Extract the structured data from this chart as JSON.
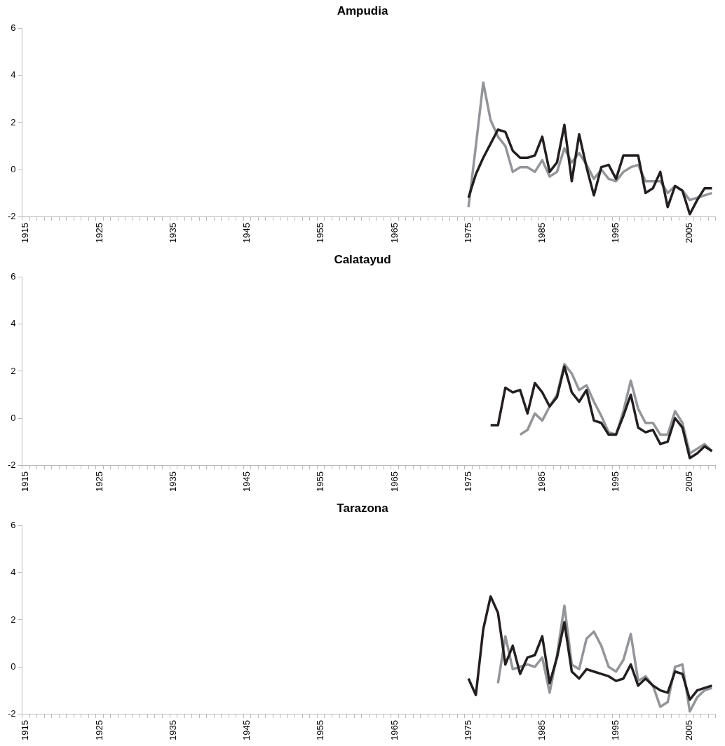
{
  "chart_data": [
    {
      "type": "line",
      "title": "Ampudia",
      "marker": "none",
      "grid": false,
      "ylim": [
        -2,
        6
      ],
      "yticks": [
        -2,
        0,
        2,
        4,
        6
      ],
      "categories": [
        "1915",
        null,
        null,
        null,
        null,
        null,
        null,
        null,
        null,
        null,
        "1925",
        null,
        null,
        null,
        null,
        null,
        null,
        null,
        null,
        null,
        "1935",
        null,
        null,
        null,
        null,
        null,
        null,
        null,
        null,
        null,
        "1945",
        null,
        null,
        null,
        null,
        null,
        null,
        null,
        null,
        null,
        "1955",
        null,
        null,
        null,
        null,
        null,
        null,
        null,
        null,
        null,
        "1965",
        null,
        null,
        null,
        null,
        null,
        null,
        null,
        null,
        null,
        "1975",
        null,
        null,
        null,
        null,
        null,
        null,
        null,
        null,
        null,
        "1985",
        null,
        null,
        null,
        null,
        null,
        null,
        null,
        null,
        null,
        "1995",
        null,
        null,
        null,
        null,
        null,
        null,
        null,
        null,
        null,
        "2005",
        null,
        null,
        null
      ],
      "series": [
        {
          "color": "#231f20",
          "values": [
            null,
            null,
            null,
            null,
            null,
            null,
            null,
            null,
            null,
            null,
            null,
            null,
            null,
            null,
            null,
            null,
            null,
            null,
            null,
            null,
            null,
            null,
            null,
            null,
            null,
            null,
            null,
            null,
            null,
            null,
            null,
            null,
            null,
            null,
            null,
            null,
            null,
            null,
            null,
            null,
            null,
            null,
            null,
            null,
            null,
            null,
            null,
            null,
            null,
            null,
            null,
            null,
            null,
            null,
            null,
            null,
            null,
            null,
            null,
            null,
            -1.2,
            -0.2,
            0.5,
            1.1,
            1.7,
            1.6,
            0.8,
            0.5,
            0.5,
            0.6,
            1.4,
            -0.1,
            0.3,
            1.9,
            -0.5,
            1.5,
            0.1,
            -1.1,
            0.1,
            0.2,
            -0.4,
            0.6,
            0.6,
            0.6,
            -1.0,
            -0.8,
            -0.1,
            -1.6,
            -0.7,
            -0.9,
            -1.9,
            -1.3,
            -0.8,
            -0.8
          ]
        },
        {
          "color": "#939598",
          "values": [
            null,
            null,
            null,
            null,
            null,
            null,
            null,
            null,
            null,
            null,
            null,
            null,
            null,
            null,
            null,
            null,
            null,
            null,
            null,
            null,
            null,
            null,
            null,
            null,
            null,
            null,
            null,
            null,
            null,
            null,
            null,
            null,
            null,
            null,
            null,
            null,
            null,
            null,
            null,
            null,
            null,
            null,
            null,
            null,
            null,
            null,
            null,
            null,
            null,
            null,
            null,
            null,
            null,
            null,
            null,
            null,
            null,
            null,
            null,
            null,
            -1.6,
            1.0,
            3.7,
            2.1,
            1.4,
            1.0,
            -0.1,
            0.1,
            0.1,
            -0.1,
            0.4,
            -0.3,
            -0.1,
            0.9,
            0.3,
            0.7,
            0.2,
            -0.4,
            0.0,
            -0.4,
            -0.5,
            -0.1,
            0.1,
            0.2,
            -0.5,
            -0.5,
            -0.5,
            -1.0,
            -0.7,
            -0.9,
            -1.3,
            -1.2,
            -1.1,
            -1.0
          ]
        }
      ]
    },
    {
      "type": "line",
      "title": "Calatayud",
      "marker": "none",
      "grid": false,
      "ylim": [
        -2,
        6
      ],
      "yticks": [
        -2,
        0,
        2,
        4,
        6
      ],
      "categories": [
        "1915",
        null,
        null,
        null,
        null,
        null,
        null,
        null,
        null,
        null,
        "1925",
        null,
        null,
        null,
        null,
        null,
        null,
        null,
        null,
        null,
        "1935",
        null,
        null,
        null,
        null,
        null,
        null,
        null,
        null,
        null,
        "1945",
        null,
        null,
        null,
        null,
        null,
        null,
        null,
        null,
        null,
        "1955",
        null,
        null,
        null,
        null,
        null,
        null,
        null,
        null,
        null,
        "1965",
        null,
        null,
        null,
        null,
        null,
        null,
        null,
        null,
        null,
        "1975",
        null,
        null,
        null,
        null,
        null,
        null,
        null,
        null,
        null,
        "1985",
        null,
        null,
        null,
        null,
        null,
        null,
        null,
        null,
        null,
        "1995",
        null,
        null,
        null,
        null,
        null,
        null,
        null,
        null,
        null,
        "2005",
        null,
        null,
        null
      ],
      "series": [
        {
          "color": "#231f20",
          "values": [
            null,
            null,
            null,
            null,
            null,
            null,
            null,
            null,
            null,
            null,
            null,
            null,
            null,
            null,
            null,
            null,
            null,
            null,
            null,
            null,
            null,
            null,
            null,
            null,
            null,
            null,
            null,
            null,
            null,
            null,
            null,
            null,
            null,
            null,
            null,
            null,
            null,
            null,
            null,
            null,
            null,
            null,
            null,
            null,
            null,
            null,
            null,
            null,
            null,
            null,
            null,
            null,
            null,
            null,
            null,
            null,
            null,
            null,
            null,
            null,
            null,
            null,
            null,
            -0.3,
            -0.3,
            1.3,
            1.1,
            1.2,
            0.2,
            1.5,
            1.1,
            0.5,
            0.9,
            2.2,
            1.1,
            0.7,
            1.2,
            -0.1,
            -0.2,
            -0.7,
            -0.7,
            0.1,
            1.0,
            -0.4,
            -0.6,
            -0.5,
            -1.1,
            -1.0,
            0.0,
            -0.4,
            -1.7,
            -1.5,
            -1.2,
            -1.4
          ]
        },
        {
          "color": "#939598",
          "values": [
            null,
            null,
            null,
            null,
            null,
            null,
            null,
            null,
            null,
            null,
            null,
            null,
            null,
            null,
            null,
            null,
            null,
            null,
            null,
            null,
            null,
            null,
            null,
            null,
            null,
            null,
            null,
            null,
            null,
            null,
            null,
            null,
            null,
            null,
            null,
            null,
            null,
            null,
            null,
            null,
            null,
            null,
            null,
            null,
            null,
            null,
            null,
            null,
            null,
            null,
            null,
            null,
            null,
            null,
            null,
            null,
            null,
            null,
            null,
            null,
            null,
            null,
            null,
            null,
            null,
            null,
            null,
            -0.7,
            -0.5,
            0.2,
            -0.1,
            0.5,
            1.0,
            2.3,
            1.9,
            1.2,
            1.4,
            0.7,
            0.1,
            -0.6,
            -0.7,
            0.3,
            1.6,
            0.4,
            -0.2,
            -0.2,
            -0.7,
            -0.7,
            0.3,
            -0.2,
            -1.5,
            -1.3,
            -1.1,
            -1.4
          ]
        }
      ]
    },
    {
      "type": "line",
      "title": "Tarazona",
      "marker": "none",
      "grid": false,
      "ylim": [
        -2,
        6
      ],
      "yticks": [
        -2,
        0,
        2,
        4,
        6
      ],
      "categories": [
        "1915",
        null,
        null,
        null,
        null,
        null,
        null,
        null,
        null,
        null,
        "1925",
        null,
        null,
        null,
        null,
        null,
        null,
        null,
        null,
        null,
        "1935",
        null,
        null,
        null,
        null,
        null,
        null,
        null,
        null,
        null,
        "1945",
        null,
        null,
        null,
        null,
        null,
        null,
        null,
        null,
        null,
        "1955",
        null,
        null,
        null,
        null,
        null,
        null,
        null,
        null,
        null,
        "1965",
        null,
        null,
        null,
        null,
        null,
        null,
        null,
        null,
        null,
        "1975",
        null,
        null,
        null,
        null,
        null,
        null,
        null,
        null,
        null,
        "1985",
        null,
        null,
        null,
        null,
        null,
        null,
        null,
        null,
        null,
        "1995",
        null,
        null,
        null,
        null,
        null,
        null,
        null,
        null,
        null,
        "2005",
        null,
        null,
        null
      ],
      "series": [
        {
          "color": "#231f20",
          "values": [
            null,
            null,
            null,
            null,
            null,
            null,
            null,
            null,
            null,
            null,
            null,
            null,
            null,
            null,
            null,
            null,
            null,
            null,
            null,
            null,
            null,
            null,
            null,
            null,
            null,
            null,
            null,
            null,
            null,
            null,
            null,
            null,
            null,
            null,
            null,
            null,
            null,
            null,
            null,
            null,
            null,
            null,
            null,
            null,
            null,
            null,
            null,
            null,
            null,
            null,
            null,
            null,
            null,
            null,
            null,
            null,
            null,
            null,
            null,
            null,
            -0.5,
            -1.2,
            1.6,
            3.0,
            2.3,
            0.1,
            0.9,
            -0.3,
            0.4,
            0.5,
            1.3,
            -0.7,
            0.4,
            1.9,
            -0.2,
            -0.5,
            -0.1,
            -0.2,
            -0.3,
            -0.4,
            -0.6,
            -0.5,
            0.1,
            -0.8,
            -0.5,
            -0.8,
            -1.0,
            -1.1,
            -0.2,
            -0.3,
            -1.4,
            -1.0,
            -0.9,
            -0.8
          ]
        },
        {
          "color": "#939598",
          "values": [
            null,
            null,
            null,
            null,
            null,
            null,
            null,
            null,
            null,
            null,
            null,
            null,
            null,
            null,
            null,
            null,
            null,
            null,
            null,
            null,
            null,
            null,
            null,
            null,
            null,
            null,
            null,
            null,
            null,
            null,
            null,
            null,
            null,
            null,
            null,
            null,
            null,
            null,
            null,
            null,
            null,
            null,
            null,
            null,
            null,
            null,
            null,
            null,
            null,
            null,
            null,
            null,
            null,
            null,
            null,
            null,
            null,
            null,
            null,
            null,
            null,
            null,
            null,
            null,
            -0.7,
            1.3,
            -0.1,
            0.0,
            0.1,
            0.0,
            0.4,
            -1.1,
            0.5,
            2.6,
            0.1,
            -0.1,
            1.2,
            1.5,
            0.9,
            0.0,
            -0.2,
            0.3,
            1.4,
            -0.6,
            -0.4,
            -0.8,
            -1.7,
            -1.5,
            0.0,
            0.1,
            -1.9,
            -1.3,
            -1.0,
            -0.9
          ]
        }
      ]
    }
  ]
}
